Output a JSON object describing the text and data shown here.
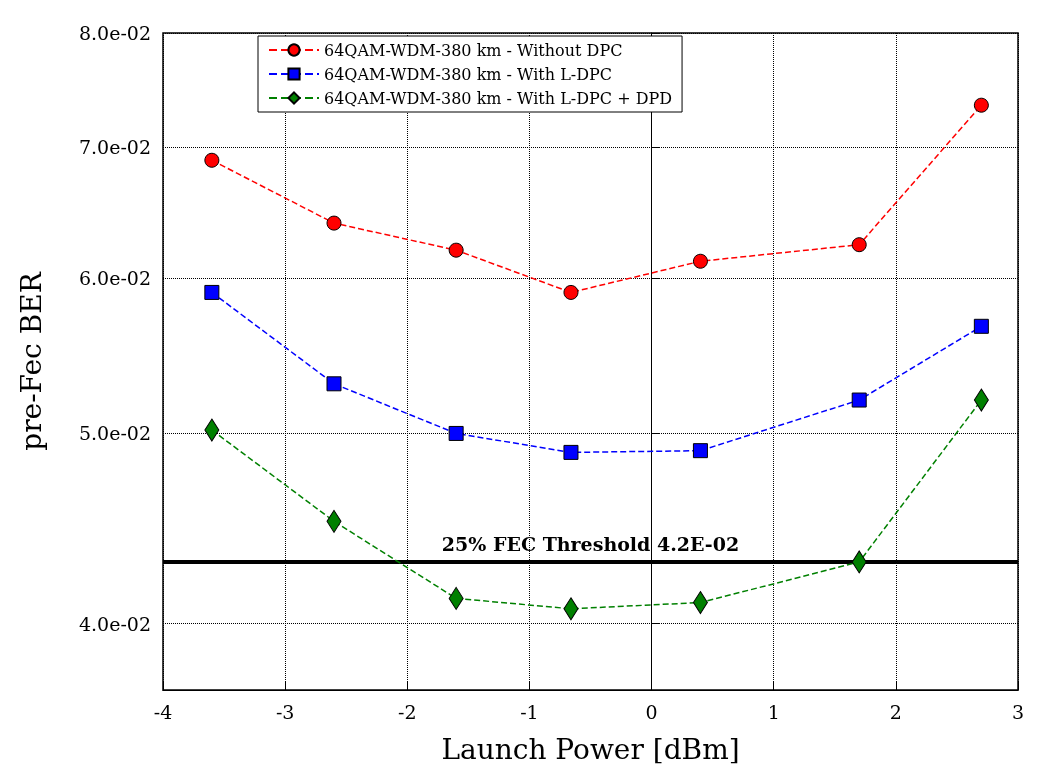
{
  "chart_data": {
    "type": "line",
    "xlabel": "Launch Power [dBm]",
    "ylabel": "pre-Fec BER",
    "x": [
      -3.6,
      -2.6,
      -1.6,
      -0.66,
      0.4,
      1.7,
      2.7
    ],
    "series": [
      {
        "name": "64QAM-WDM-380 km - Without DPC",
        "color": "#ff0000",
        "marker": "circle",
        "values": [
          0.0689,
          0.064,
          0.062,
          0.059,
          0.0612,
          0.0624,
          0.0735
        ]
      },
      {
        "name": "64QAM-WDM-380 km - With L-DPC",
        "color": "#0000ff",
        "marker": "square",
        "values": [
          0.059,
          0.053,
          0.05,
          0.0489,
          0.049,
          0.052,
          0.0567
        ]
      },
      {
        "name": "64QAM-WDM-380 km - With L-DPC + DPD",
        "color": "#008000",
        "marker": "diamond",
        "values": [
          0.0502,
          0.0451,
          0.0412,
          0.0407,
          0.041,
          0.043,
          0.052
        ]
      }
    ],
    "line_style": "dashed",
    "log": "y",
    "grid": true,
    "legend": "top",
    "xlim": [
      -4,
      3
    ],
    "xticks": [
      -4,
      -3,
      -2,
      -1,
      0,
      1,
      2,
      3
    ],
    "ylim": [
      0.037,
      0.08
    ],
    "yticks": [
      {
        "value": 0.04,
        "label": "4.0e-02"
      },
      {
        "value": 0.05,
        "label": "5.0e-02"
      },
      {
        "value": 0.06,
        "label": "6.0e-02"
      },
      {
        "value": 0.07,
        "label": "7.0e-02"
      },
      {
        "value": 0.08,
        "label": "8.0e-02"
      }
    ],
    "ref_lines": [
      {
        "axis": "y",
        "value": 0.043,
        "label": "25% FEC Threshold 4.2E-02",
        "color": "#000000"
      }
    ]
  }
}
